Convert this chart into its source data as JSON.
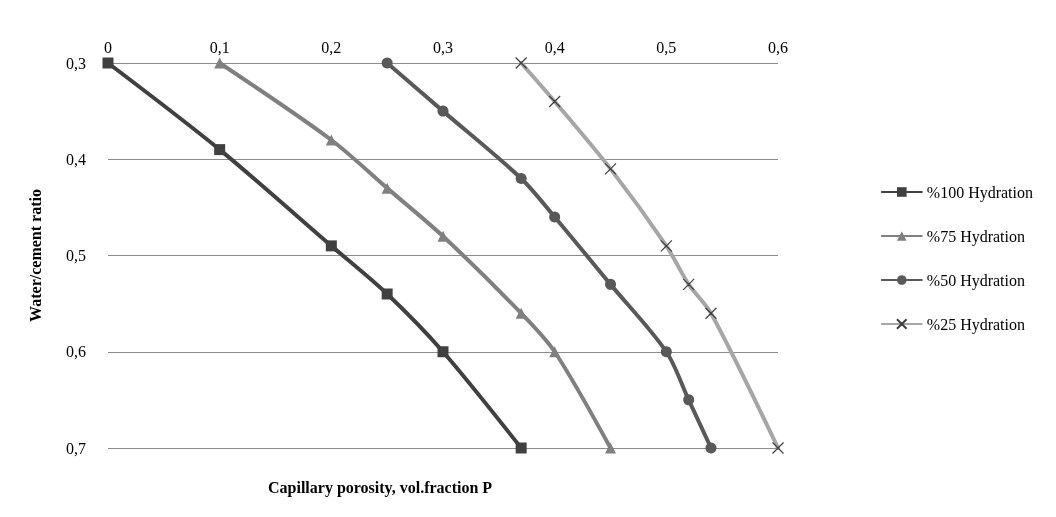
{
  "chart_data": {
    "type": "line",
    "xlabel": "Capillary porosity, vol.fraction P",
    "ylabel": "Water/cement ratio",
    "xlim": [
      0,
      0.6
    ],
    "xticks": [
      {
        "value": 0,
        "label": "0"
      },
      {
        "value": 0.1,
        "label": "0,1"
      },
      {
        "value": 0.2,
        "label": "0,2"
      },
      {
        "value": 0.3,
        "label": "0,3"
      },
      {
        "value": 0.4,
        "label": "0,4"
      },
      {
        "value": 0.5,
        "label": "0,5"
      },
      {
        "value": 0.6,
        "label": "0,6"
      }
    ],
    "ylim": [
      0.7,
      0.3
    ],
    "yticks": [
      {
        "value": 0.3,
        "label": "0,3"
      },
      {
        "value": 0.4,
        "label": "0,4"
      },
      {
        "value": 0.5,
        "label": "0,5"
      },
      {
        "value": 0.6,
        "label": "0,6"
      },
      {
        "value": 0.7,
        "label": "0,7"
      }
    ],
    "grid": "y",
    "legend": "right",
    "line_style": "solid",
    "series": [
      {
        "name": "%100 Hydration",
        "color": "#404040",
        "marker": "square",
        "x": [
          0,
          0.1,
          0.2,
          0.25,
          0.3,
          0.37
        ],
        "values": [
          0.3,
          0.39,
          0.49,
          0.54,
          0.6,
          0.7
        ]
      },
      {
        "name": "%75 Hydration",
        "color": "#808080",
        "marker": "triangle",
        "x": [
          0.1,
          0.2,
          0.25,
          0.3,
          0.37,
          0.4,
          0.45
        ],
        "values": [
          0.3,
          0.38,
          0.43,
          0.48,
          0.56,
          0.6,
          0.7
        ]
      },
      {
        "name": "%50 Hydration",
        "color": "#595959",
        "marker": "circle",
        "x": [
          0.25,
          0.3,
          0.37,
          0.4,
          0.45,
          0.5,
          0.52,
          0.54
        ],
        "values": [
          0.3,
          0.35,
          0.42,
          0.46,
          0.53,
          0.6,
          0.65,
          0.7
        ]
      },
      {
        "name": "%25 Hydration",
        "color": "#a6a6a6",
        "marker": "cross",
        "x": [
          0.37,
          0.4,
          0.45,
          0.5,
          0.52,
          0.54,
          0.6
        ],
        "values": [
          0.3,
          0.34,
          0.41,
          0.49,
          0.53,
          0.56,
          0.7
        ]
      }
    ]
  }
}
